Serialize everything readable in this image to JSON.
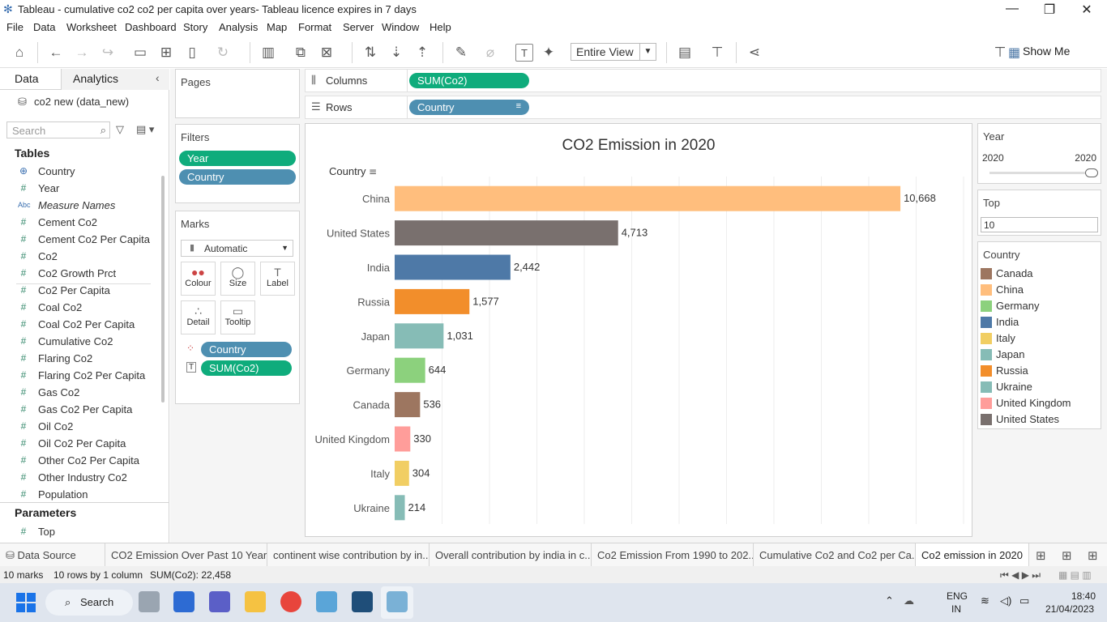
{
  "window": {
    "title": "Tableau - cumulative co2 co2 per capita over years- Tableau licence expires in 7 days"
  },
  "menu": [
    "File",
    "Data",
    "Worksheet",
    "Dashboard",
    "Story",
    "Analysis",
    "Map",
    "Format",
    "Server",
    "Window",
    "Help"
  ],
  "toolbar": {
    "view_fit": "Entire View",
    "show_me": "Show Me"
  },
  "datapane": {
    "tab_data": "Data",
    "tab_analytics": "Analytics",
    "datasource": "co2 new (data_new)",
    "search_placeholder": "Search",
    "tables_header": "Tables",
    "fields": [
      {
        "icon": "globe-icon",
        "glyph": "⊕",
        "label": "Country"
      },
      {
        "icon": "hash-icon",
        "glyph": "#",
        "label": "Year"
      },
      {
        "icon": "abc-icon",
        "glyph": "Abc",
        "label": "Measure Names"
      },
      {
        "icon": "hash-icon",
        "glyph": "#",
        "label": "Cement Co2"
      },
      {
        "icon": "hash-icon",
        "glyph": "#",
        "label": "Cement Co2 Per Capita"
      },
      {
        "icon": "hash-icon",
        "glyph": "#",
        "label": "Co2"
      },
      {
        "icon": "hash-icon",
        "glyph": "#",
        "label": "Co2 Growth Prct"
      },
      {
        "icon": "hash-icon",
        "glyph": "#",
        "label": "Co2 Per Capita"
      },
      {
        "icon": "hash-icon",
        "glyph": "#",
        "label": "Coal Co2"
      },
      {
        "icon": "hash-icon",
        "glyph": "#",
        "label": "Coal Co2 Per Capita"
      },
      {
        "icon": "hash-icon",
        "glyph": "#",
        "label": "Cumulative Co2"
      },
      {
        "icon": "hash-icon",
        "glyph": "#",
        "label": "Flaring Co2"
      },
      {
        "icon": "hash-icon",
        "glyph": "#",
        "label": "Flaring Co2 Per Capita"
      },
      {
        "icon": "hash-icon",
        "glyph": "#",
        "label": "Gas Co2"
      },
      {
        "icon": "hash-icon",
        "glyph": "#",
        "label": "Gas Co2 Per Capita"
      },
      {
        "icon": "hash-icon",
        "glyph": "#",
        "label": "Oil Co2"
      },
      {
        "icon": "hash-icon",
        "glyph": "#",
        "label": "Oil Co2 Per Capita"
      },
      {
        "icon": "hash-icon",
        "glyph": "#",
        "label": "Other Co2 Per Capita"
      },
      {
        "icon": "hash-icon",
        "glyph": "#",
        "label": "Other Industry Co2"
      },
      {
        "icon": "hash-icon",
        "glyph": "#",
        "label": "Population"
      }
    ],
    "parameters_header": "Parameters",
    "parameters": [
      {
        "glyph": "#",
        "label": "Top"
      }
    ]
  },
  "shelves": {
    "pages": "Pages",
    "filters": "Filters",
    "filter_pills": [
      "Year",
      "Country"
    ],
    "marks": "Marks",
    "mark_type": "Automatic",
    "mark_buttons": [
      {
        "icon": "colour-icon",
        "glyph": "●●",
        "label": "Colour"
      },
      {
        "icon": "size-icon",
        "glyph": "◯",
        "label": "Size"
      },
      {
        "icon": "label-icon",
        "glyph": "T",
        "label": "Label"
      },
      {
        "icon": "detail-icon",
        "glyph": "∴",
        "label": "Detail"
      },
      {
        "icon": "tooltip-icon",
        "glyph": "▭",
        "label": "Tooltip"
      }
    ],
    "mark_pills": [
      "Country",
      "SUM(Co2)"
    ],
    "columns_label": "Columns",
    "columns_pill": "SUM(Co2)",
    "rows_label": "Rows",
    "rows_pill": "Country"
  },
  "chart_data": {
    "type": "bar",
    "title": "CO2 Emission in 2020",
    "row_header": "Country",
    "categories": [
      "China",
      "United States",
      "India",
      "Russia",
      "Japan",
      "Germany",
      "Canada",
      "United Kingdom",
      "Italy",
      "Ukraine"
    ],
    "values": [
      10668,
      4713,
      2442,
      1577,
      1031,
      644,
      536,
      330,
      304,
      214
    ],
    "value_labels": [
      "10,668",
      "4,713",
      "2,442",
      "1,577",
      "1,031",
      "644",
      "536",
      "330",
      "304",
      "214"
    ],
    "colors": [
      "#ffbe7d",
      "#79706e",
      "#4e79a7",
      "#f28e2b",
      "#86bcb6",
      "#8cd17d",
      "#9d7660",
      "#ff9d9a",
      "#f1ce63",
      "#86bcb6"
    ],
    "xlim": [
      0,
      12000
    ],
    "grid": true,
    "orientation": "horizontal"
  },
  "filters_panel": {
    "year_title": "Year",
    "year_min": "2020",
    "year_max": "2020",
    "top_title": "Top",
    "top_value": "10"
  },
  "legend": {
    "title": "Country",
    "items": [
      {
        "label": "Canada",
        "color": "#9d7660"
      },
      {
        "label": "China",
        "color": "#ffbe7d"
      },
      {
        "label": "Germany",
        "color": "#8cd17d"
      },
      {
        "label": "India",
        "color": "#4e79a7"
      },
      {
        "label": "Italy",
        "color": "#f1ce63"
      },
      {
        "label": "Japan",
        "color": "#86bcb6"
      },
      {
        "label": "Russia",
        "color": "#f28e2b"
      },
      {
        "label": "Ukraine",
        "color": "#86bcb6"
      },
      {
        "label": "United Kingdom",
        "color": "#ff9d9a"
      },
      {
        "label": "United States",
        "color": "#79706e"
      }
    ]
  },
  "tabs": [
    {
      "label": "Data Source",
      "active": false
    },
    {
      "label": "CO2 Emission Over Past 10 Years",
      "active": false
    },
    {
      "label": "continent wise contribution by in...",
      "active": false
    },
    {
      "label": "Overall contribution by india in c...",
      "active": false
    },
    {
      "label": "Co2 Emission From 1990 to 202...",
      "active": false
    },
    {
      "label": "Cumulative Co2 and Co2 per Ca...",
      "active": false
    },
    {
      "label": "Co2 emission in 2020",
      "active": true
    }
  ],
  "status": {
    "marks": "10 marks",
    "rows_cols": "10 rows by 1 column",
    "sum": "SUM(Co2): 22,458"
  },
  "taskbar": {
    "search": "Search",
    "lang": "ENG",
    "region": "IN",
    "time": "18:40",
    "date": "21/04/2023"
  }
}
